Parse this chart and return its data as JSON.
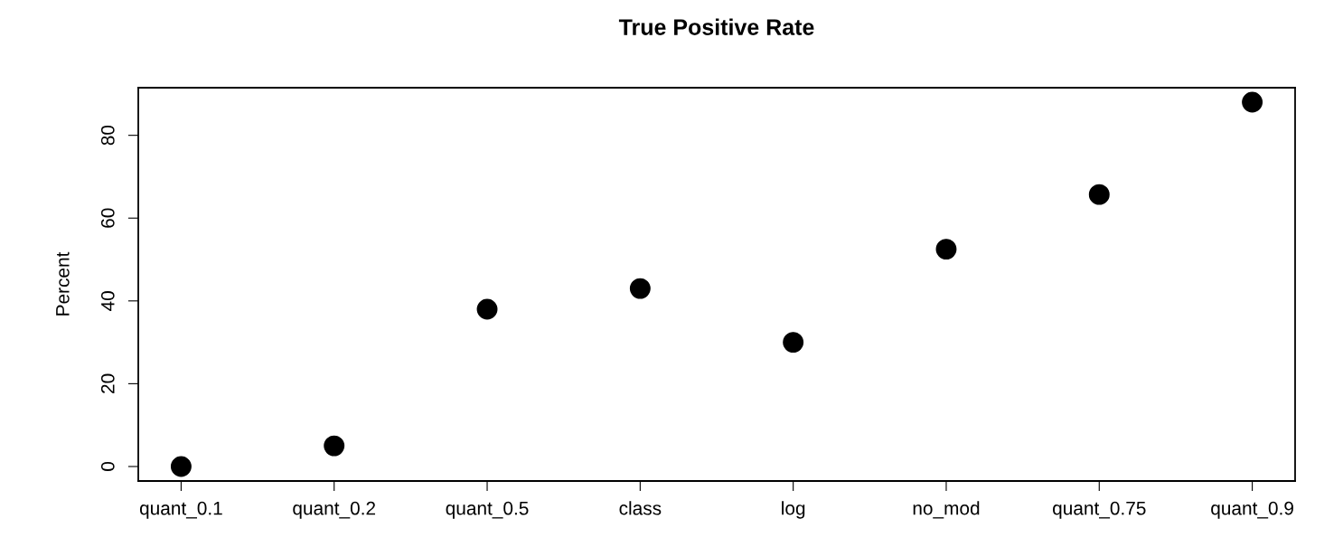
{
  "chart_data": {
    "type": "scatter",
    "title": "True Positive Rate",
    "ylabel": "Percent",
    "categories": [
      "quant_0.1",
      "quant_0.2",
      "quant_0.5",
      "class",
      "log",
      "no_mod",
      "quant_0.75",
      "quant_0.9"
    ],
    "values": [
      0,
      5,
      38,
      43,
      30,
      52.5,
      65.7,
      88
    ],
    "color": "#000000",
    "marker": "circle",
    "ylim": [
      -3.5,
      91.5
    ],
    "yticks": [
      0,
      20,
      40,
      60,
      80
    ],
    "grid": false,
    "legend": false
  }
}
